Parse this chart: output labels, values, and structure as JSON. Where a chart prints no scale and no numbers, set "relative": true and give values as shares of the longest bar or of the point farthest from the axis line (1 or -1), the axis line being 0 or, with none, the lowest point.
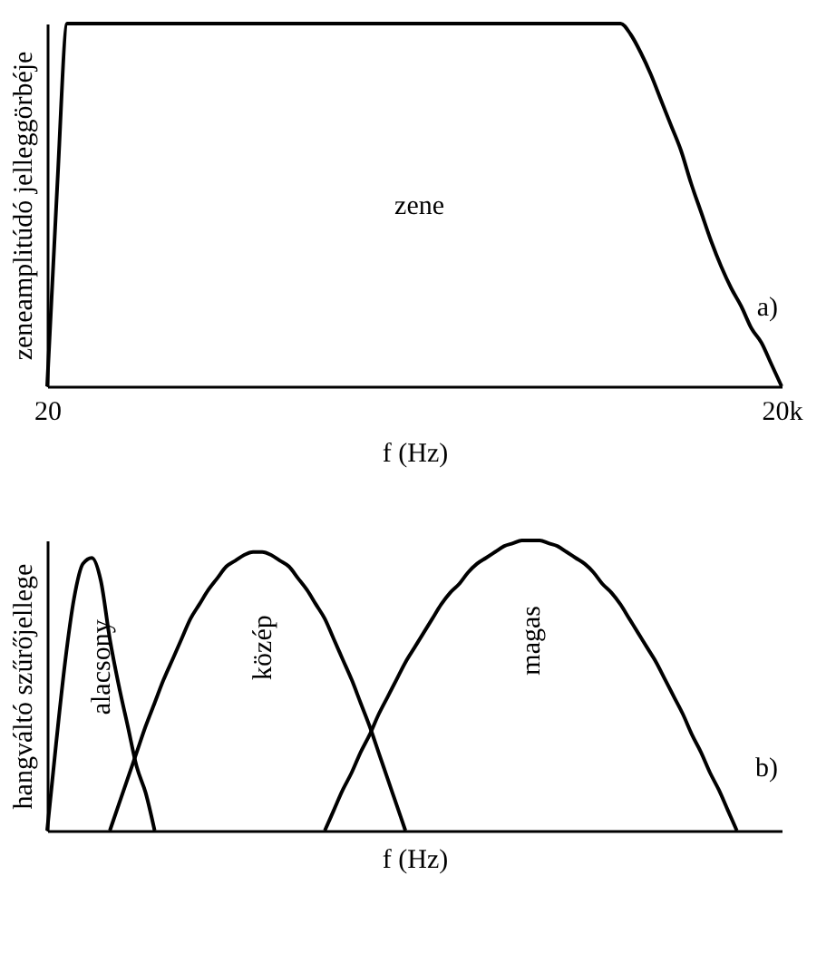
{
  "chart_data": [
    {
      "type": "line",
      "relative": true,
      "ylabel": "zeneamplitúdó jelleggörbéje",
      "xlabel": "f (Hz)",
      "tick_labels": "x",
      "annotations": [
        "a)"
      ],
      "categories": [
        "20",
        null,
        null,
        null,
        null,
        null,
        null,
        null,
        null,
        null,
        null,
        null,
        null,
        null,
        null,
        null,
        null,
        null,
        null,
        null,
        null,
        null,
        null,
        null,
        null,
        null,
        null,
        null,
        null,
        null,
        null,
        null,
        null,
        null,
        null,
        null,
        null,
        null,
        null,
        null,
        null,
        null,
        null,
        null,
        null,
        null,
        null,
        null,
        null,
        null,
        null,
        null,
        null,
        null,
        null,
        null,
        null,
        null,
        null,
        null,
        null,
        null,
        null,
        null,
        null,
        null,
        null,
        null,
        null,
        null,
        null,
        null,
        null,
        "20k"
      ],
      "series": [
        {
          "name": "zene",
          "color": "#000000",
          "values": [
            0,
            0.55,
            1,
            1,
            1,
            1,
            1,
            1,
            1,
            1,
            1,
            1,
            1,
            1,
            1,
            1,
            1,
            1,
            1,
            1,
            1,
            1,
            1,
            1,
            1,
            1,
            1,
            1,
            1,
            1,
            1,
            1,
            1,
            1,
            1,
            1,
            1,
            1,
            1,
            1,
            1,
            1,
            1,
            1,
            1,
            1,
            1,
            1,
            1,
            1,
            1,
            1,
            1,
            1,
            1,
            1,
            1,
            1,
            0.97,
            0.92,
            0.86,
            0.79,
            0.72,
            0.65,
            0.56,
            0.48,
            0.4,
            0.33,
            0.27,
            0.22,
            0.16,
            0.12,
            0.06,
            0
          ]
        }
      ]
    },
    {
      "type": "line",
      "relative": true,
      "ylabel": "hangváltó szűrőjellege",
      "xlabel": "f (Hz)",
      "tick_labels": false,
      "annotations": [
        "b)"
      ],
      "categories": [
        null,
        null,
        null,
        null,
        null,
        null,
        null,
        null,
        null,
        null,
        null,
        null,
        null,
        null,
        null,
        null,
        null,
        null,
        null,
        null,
        null,
        null,
        null,
        null,
        null,
        null,
        null,
        null,
        null,
        null,
        null,
        null,
        null,
        null,
        null,
        null,
        null,
        null,
        null,
        null,
        null,
        null,
        null,
        null,
        null,
        null,
        null,
        null,
        null,
        null,
        null,
        null,
        null,
        null,
        null,
        null,
        null,
        null,
        null,
        null,
        null,
        null,
        null,
        null,
        null,
        null,
        null,
        null,
        null,
        null,
        null,
        null,
        null,
        null,
        null,
        null,
        null,
        null,
        null,
        null,
        null,
        null,
        null
      ],
      "series": [
        {
          "name": "alacsony",
          "color": "#000000",
          "values": [
            0,
            0.3,
            0.58,
            0.8,
            0.92,
            0.94,
            0.86,
            0.66,
            0.5,
            0.36,
            0.22,
            0.13,
            0,
            null,
            null,
            null,
            null,
            null,
            null,
            null,
            null,
            null,
            null,
            null,
            null,
            null,
            null,
            null,
            null,
            null,
            null,
            null,
            null,
            null,
            null,
            null,
            null,
            null,
            null,
            null,
            null,
            null,
            null,
            null,
            null,
            null,
            null,
            null,
            null,
            null,
            null,
            null,
            null,
            null,
            null,
            null,
            null,
            null,
            null,
            null,
            null,
            null,
            null,
            null,
            null,
            null,
            null,
            null,
            null,
            null,
            null,
            null,
            null,
            null,
            null,
            null,
            null,
            null,
            null,
            null,
            null,
            null,
            null
          ]
        },
        {
          "name": "közép",
          "color": "#000000",
          "values": [
            null,
            null,
            null,
            null,
            null,
            null,
            null,
            0,
            0.09,
            0.18,
            0.27,
            0.36,
            0.44,
            0.52,
            0.59,
            0.66,
            0.73,
            0.78,
            0.83,
            0.87,
            0.91,
            0.93,
            0.95,
            0.96,
            0.96,
            0.95,
            0.93,
            0.91,
            0.87,
            0.83,
            0.78,
            0.73,
            0.66,
            0.59,
            0.52,
            0.44,
            0.36,
            0.27,
            0.18,
            0.09,
            0,
            null,
            null,
            null,
            null,
            null,
            null,
            null,
            null,
            null,
            null,
            null,
            null,
            null,
            null,
            null,
            null,
            null,
            null,
            null,
            null,
            null,
            null,
            null,
            null,
            null,
            null,
            null,
            null,
            null,
            null,
            null,
            null,
            null,
            null,
            null,
            null,
            null,
            null,
            null,
            null,
            null,
            null
          ]
        },
        {
          "name": "magas",
          "color": "#000000",
          "values": [
            null,
            null,
            null,
            null,
            null,
            null,
            null,
            null,
            null,
            null,
            null,
            null,
            null,
            null,
            null,
            null,
            null,
            null,
            null,
            null,
            null,
            null,
            null,
            null,
            null,
            null,
            null,
            null,
            null,
            null,
            null,
            0,
            0.07,
            0.14,
            0.2,
            0.27,
            0.33,
            0.4,
            0.46,
            0.52,
            0.58,
            0.63,
            0.68,
            0.73,
            0.78,
            0.82,
            0.85,
            0.89,
            0.92,
            0.94,
            0.96,
            0.98,
            0.99,
            1,
            1,
            1,
            0.99,
            0.98,
            0.96,
            0.94,
            0.92,
            0.89,
            0.85,
            0.82,
            0.78,
            0.73,
            0.68,
            0.63,
            0.58,
            0.52,
            0.46,
            0.4,
            0.33,
            0.27,
            0.2,
            0.14,
            0.07,
            0,
            null,
            null,
            null,
            null,
            null
          ]
        }
      ]
    }
  ]
}
